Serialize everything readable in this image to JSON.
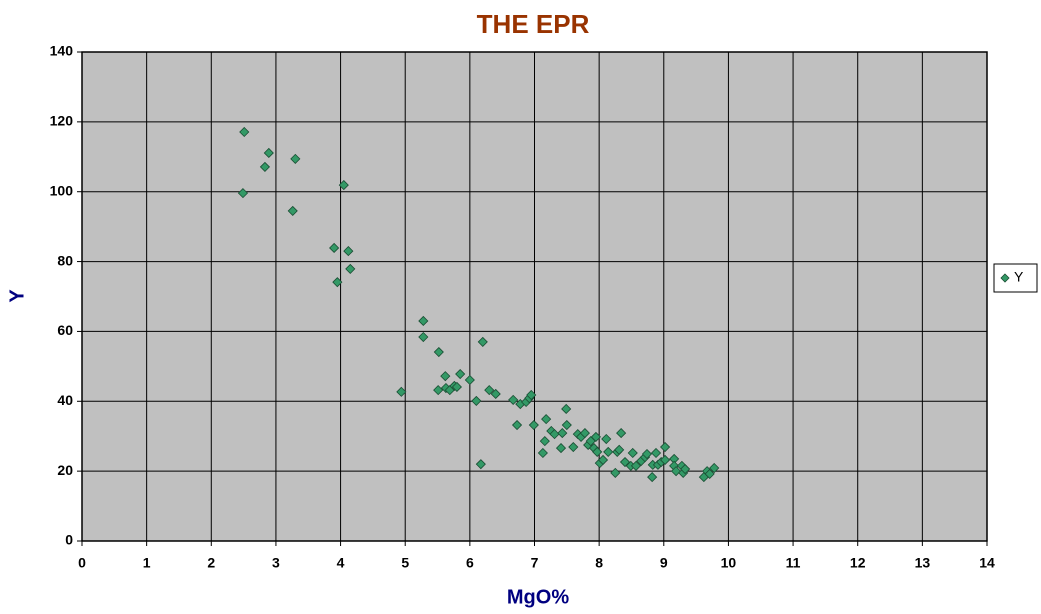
{
  "chart_data": {
    "type": "scatter",
    "title": "THE EPR",
    "x_label": "MgO%",
    "y_label": "Y",
    "xlim": [
      0,
      14
    ],
    "xticks": [
      0,
      1,
      2,
      3,
      4,
      5,
      6,
      7,
      8,
      9,
      10,
      11,
      12,
      13,
      14
    ],
    "ylim": [
      0,
      140
    ],
    "yticks": [
      0,
      20,
      40,
      60,
      80,
      100,
      120,
      140
    ],
    "grid": true,
    "legend": "right",
    "series": [
      {
        "name": "Y",
        "color": "#339966",
        "x": [
          2.51,
          2.49,
          2.89,
          2.83,
          3.3,
          3.26,
          4.05,
          3.9,
          4.12,
          3.95,
          4.15,
          4.94,
          5.28,
          5.28,
          5.52,
          5.51,
          5.62,
          5.63,
          5.69,
          5.76,
          5.8,
          5.85,
          6.0,
          6.1,
          6.2,
          6.3,
          6.4,
          6.17,
          6.67,
          6.73,
          6.78,
          6.87,
          6.92,
          6.95,
          6.99,
          7.13,
          7.18,
          7.16,
          7.26,
          7.31,
          7.41,
          7.43,
          7.49,
          7.5,
          7.6,
          7.67,
          7.72,
          7.78,
          7.83,
          7.87,
          7.95,
          7.92,
          7.97,
          8.01,
          8.06,
          8.11,
          8.14,
          8.25,
          8.28,
          8.31,
          8.34,
          8.4,
          8.49,
          8.52,
          8.57,
          8.65,
          8.71,
          8.74,
          8.82,
          8.83,
          8.88,
          8.91,
          8.96,
          9.02,
          9.02,
          9.16,
          9.16,
          9.19,
          9.28,
          9.3,
          9.33,
          9.62,
          9.67,
          9.71,
          9.78
        ],
        "values": [
          117.1,
          99.6,
          111.1,
          107.1,
          109.4,
          94.5,
          101.9,
          83.9,
          83.0,
          74.1,
          77.9,
          42.7,
          63.0,
          58.4,
          54.1,
          43.2,
          47.2,
          43.8,
          43.2,
          44.4,
          44.1,
          47.8,
          46.1,
          40.1,
          57.0,
          43.2,
          42.1,
          22.0,
          40.4,
          33.2,
          39.2,
          39.8,
          40.9,
          41.8,
          33.2,
          25.2,
          34.9,
          28.6,
          31.5,
          30.6,
          26.6,
          30.9,
          37.8,
          33.2,
          26.9,
          30.6,
          29.8,
          30.9,
          27.5,
          28.6,
          29.8,
          26.6,
          25.5,
          22.3,
          23.2,
          29.2,
          25.5,
          19.5,
          25.5,
          26.1,
          30.9,
          22.6,
          21.5,
          25.2,
          21.5,
          22.9,
          24.0,
          24.9,
          18.3,
          21.8,
          25.2,
          21.8,
          22.6,
          26.9,
          23.2,
          23.5,
          21.5,
          20.0,
          21.5,
          19.5,
          20.6,
          18.3,
          20.0,
          19.2,
          20.9
        ]
      }
    ]
  }
}
